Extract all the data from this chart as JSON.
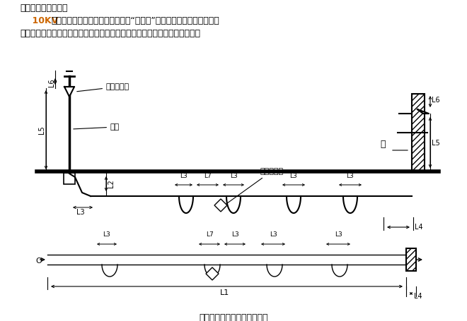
{
  "title_line1": "二、电缆工程量计算",
  "title_line2a": "    10KV",
  "title_line2b": "以下电力电缆和控制电缆，按单根“延长米”计量。其总长度由水平长度",
  "title_line3": "加上垂直长度、再加上预留长度而定，如下图及表下表所示。其计算式如下：",
  "label_terminal": "电缆终端头",
  "label_pole": "电杆",
  "label_wall": "墙",
  "label_joint": "电缆中间头",
  "caption": "电缆长度组成平、剖面示意图",
  "title_color_normal": "#000000",
  "title_color_highlight": "#cc6600",
  "bg_color": "#ffffff",
  "line_color": "#000000"
}
